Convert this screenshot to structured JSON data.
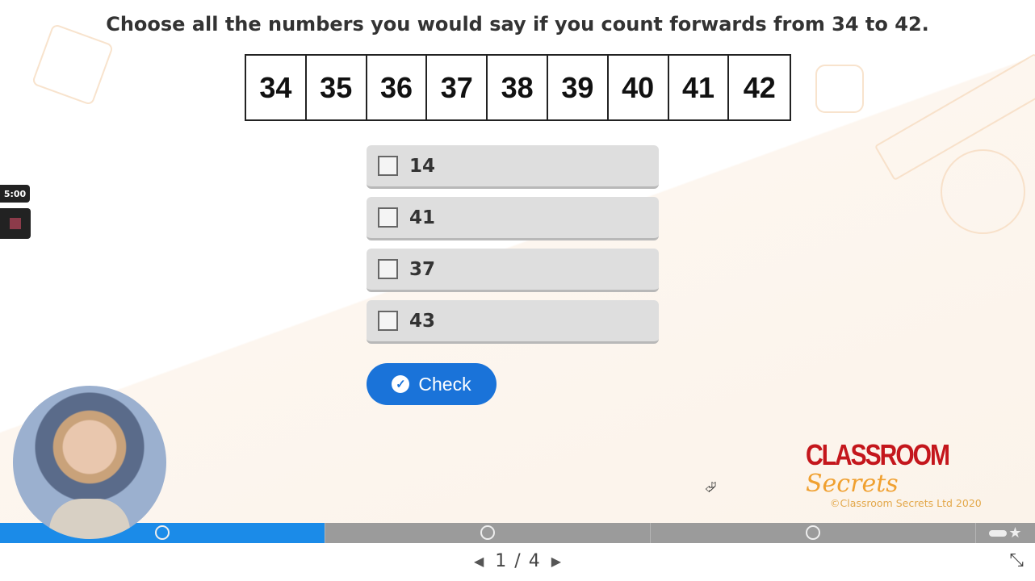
{
  "question": "Choose all the numbers you would say if you count forwards from 34 to 42.",
  "number_strip": [
    "34",
    "35",
    "36",
    "37",
    "38",
    "39",
    "40",
    "41",
    "42"
  ],
  "options": [
    {
      "label": "14",
      "checked": false
    },
    {
      "label": "41",
      "checked": false
    },
    {
      "label": "37",
      "checked": false
    },
    {
      "label": "43",
      "checked": false
    }
  ],
  "check_button": {
    "label": "Check",
    "icon": "check-circle-icon"
  },
  "timer": "5:00",
  "logo": {
    "part1": "CLASSROOM",
    "part2": "Secrets"
  },
  "copyright": "©Classroom Secrets Ltd 2020",
  "progress": {
    "completed_segments": 1,
    "total_segments": 3
  },
  "pagination": {
    "current": "1",
    "separator": "/",
    "total": "4"
  },
  "colors": {
    "accent": "#1a73d9",
    "progress_done": "#1b8be8",
    "progress_bg": "#9b9b9b"
  }
}
